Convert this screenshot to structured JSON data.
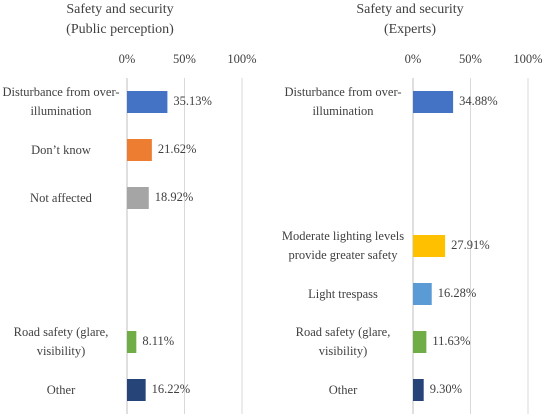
{
  "chart_data": [
    {
      "type": "bar",
      "orientation": "horizontal",
      "title": "Safety and security",
      "subtitle": "(Public perception)",
      "categories": [
        "Disturbance from over-illumination",
        "Don’t know",
        "Not affected",
        null,
        null,
        "Road safety (glare, visibility)",
        "Other"
      ],
      "values": [
        35.13,
        21.62,
        18.92,
        null,
        null,
        8.11,
        16.22
      ],
      "value_labels": [
        "35.13%",
        "21.62%",
        "18.92%",
        null,
        null,
        "8.11%",
        "16.22%"
      ],
      "colors": [
        "#4472c4",
        "#ed7d31",
        "#a5a5a5",
        null,
        null,
        "#70ad47",
        "#264478"
      ],
      "xlim": [
        0,
        100
      ],
      "xticks": [
        {
          "value": 0,
          "label": "0%"
        },
        {
          "value": 50,
          "label": "50%"
        },
        {
          "value": 100,
          "label": "100%"
        }
      ],
      "grid": true
    },
    {
      "type": "bar",
      "orientation": "horizontal",
      "title": "Safety and security",
      "subtitle": "(Experts)",
      "categories": [
        "Disturbance from over-illumination",
        null,
        null,
        "Moderate lighting levels provide greater safety",
        "Light trespass",
        "Road safety (glare, visibility)",
        "Other"
      ],
      "values": [
        34.88,
        null,
        null,
        27.91,
        16.28,
        11.63,
        9.3
      ],
      "value_labels": [
        "34.88%",
        null,
        null,
        "27.91%",
        "16.28%",
        "11.63%",
        "9.30%"
      ],
      "colors": [
        "#4472c4",
        null,
        null,
        "#ffc000",
        "#5b9bd5",
        "#70ad47",
        "#264478"
      ],
      "xlim": [
        0,
        100
      ],
      "xticks": [
        {
          "value": 0,
          "label": "0%"
        },
        {
          "value": 50,
          "label": "50%"
        },
        {
          "value": 100,
          "label": "100%"
        }
      ],
      "grid": true
    }
  ]
}
